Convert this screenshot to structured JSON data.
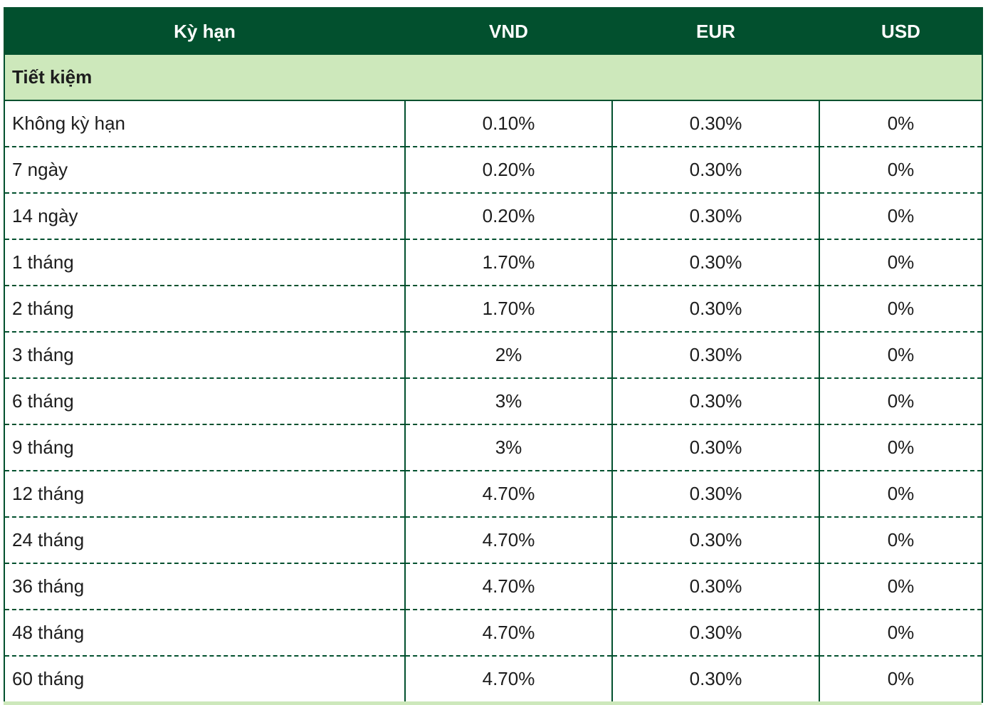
{
  "colors": {
    "header_bg": "#02502e",
    "header_text": "#ffffff",
    "section_bg": "#cde8bb",
    "border": "#02502e",
    "body_text": "#1d1d1d"
  },
  "table": {
    "headers": [
      "Kỳ hạn",
      "VND",
      "EUR",
      "USD"
    ],
    "section_label": "Tiết kiệm",
    "rows": [
      {
        "term": "Không kỳ hạn",
        "vnd": "0.10%",
        "eur": "0.30%",
        "usd": "0%"
      },
      {
        "term": "7 ngày",
        "vnd": "0.20%",
        "eur": "0.30%",
        "usd": "0%"
      },
      {
        "term": "14 ngày",
        "vnd": "0.20%",
        "eur": "0.30%",
        "usd": "0%"
      },
      {
        "term": "1 tháng",
        "vnd": "1.70%",
        "eur": "0.30%",
        "usd": "0%"
      },
      {
        "term": "2 tháng",
        "vnd": "1.70%",
        "eur": "0.30%",
        "usd": "0%"
      },
      {
        "term": "3 tháng",
        "vnd": "2%",
        "eur": "0.30%",
        "usd": "0%"
      },
      {
        "term": "6 tháng",
        "vnd": "3%",
        "eur": "0.30%",
        "usd": "0%"
      },
      {
        "term": "9 tháng",
        "vnd": "3%",
        "eur": "0.30%",
        "usd": "0%"
      },
      {
        "term": "12 tháng",
        "vnd": "4.70%",
        "eur": "0.30%",
        "usd": "0%"
      },
      {
        "term": "24 tháng",
        "vnd": "4.70%",
        "eur": "0.30%",
        "usd": "0%"
      },
      {
        "term": "36 tháng",
        "vnd": "4.70%",
        "eur": "0.30%",
        "usd": "0%"
      },
      {
        "term": "48 tháng",
        "vnd": "4.70%",
        "eur": "0.30%",
        "usd": "0%"
      },
      {
        "term": "60 tháng",
        "vnd": "4.70%",
        "eur": "0.30%",
        "usd": "0%"
      }
    ]
  }
}
